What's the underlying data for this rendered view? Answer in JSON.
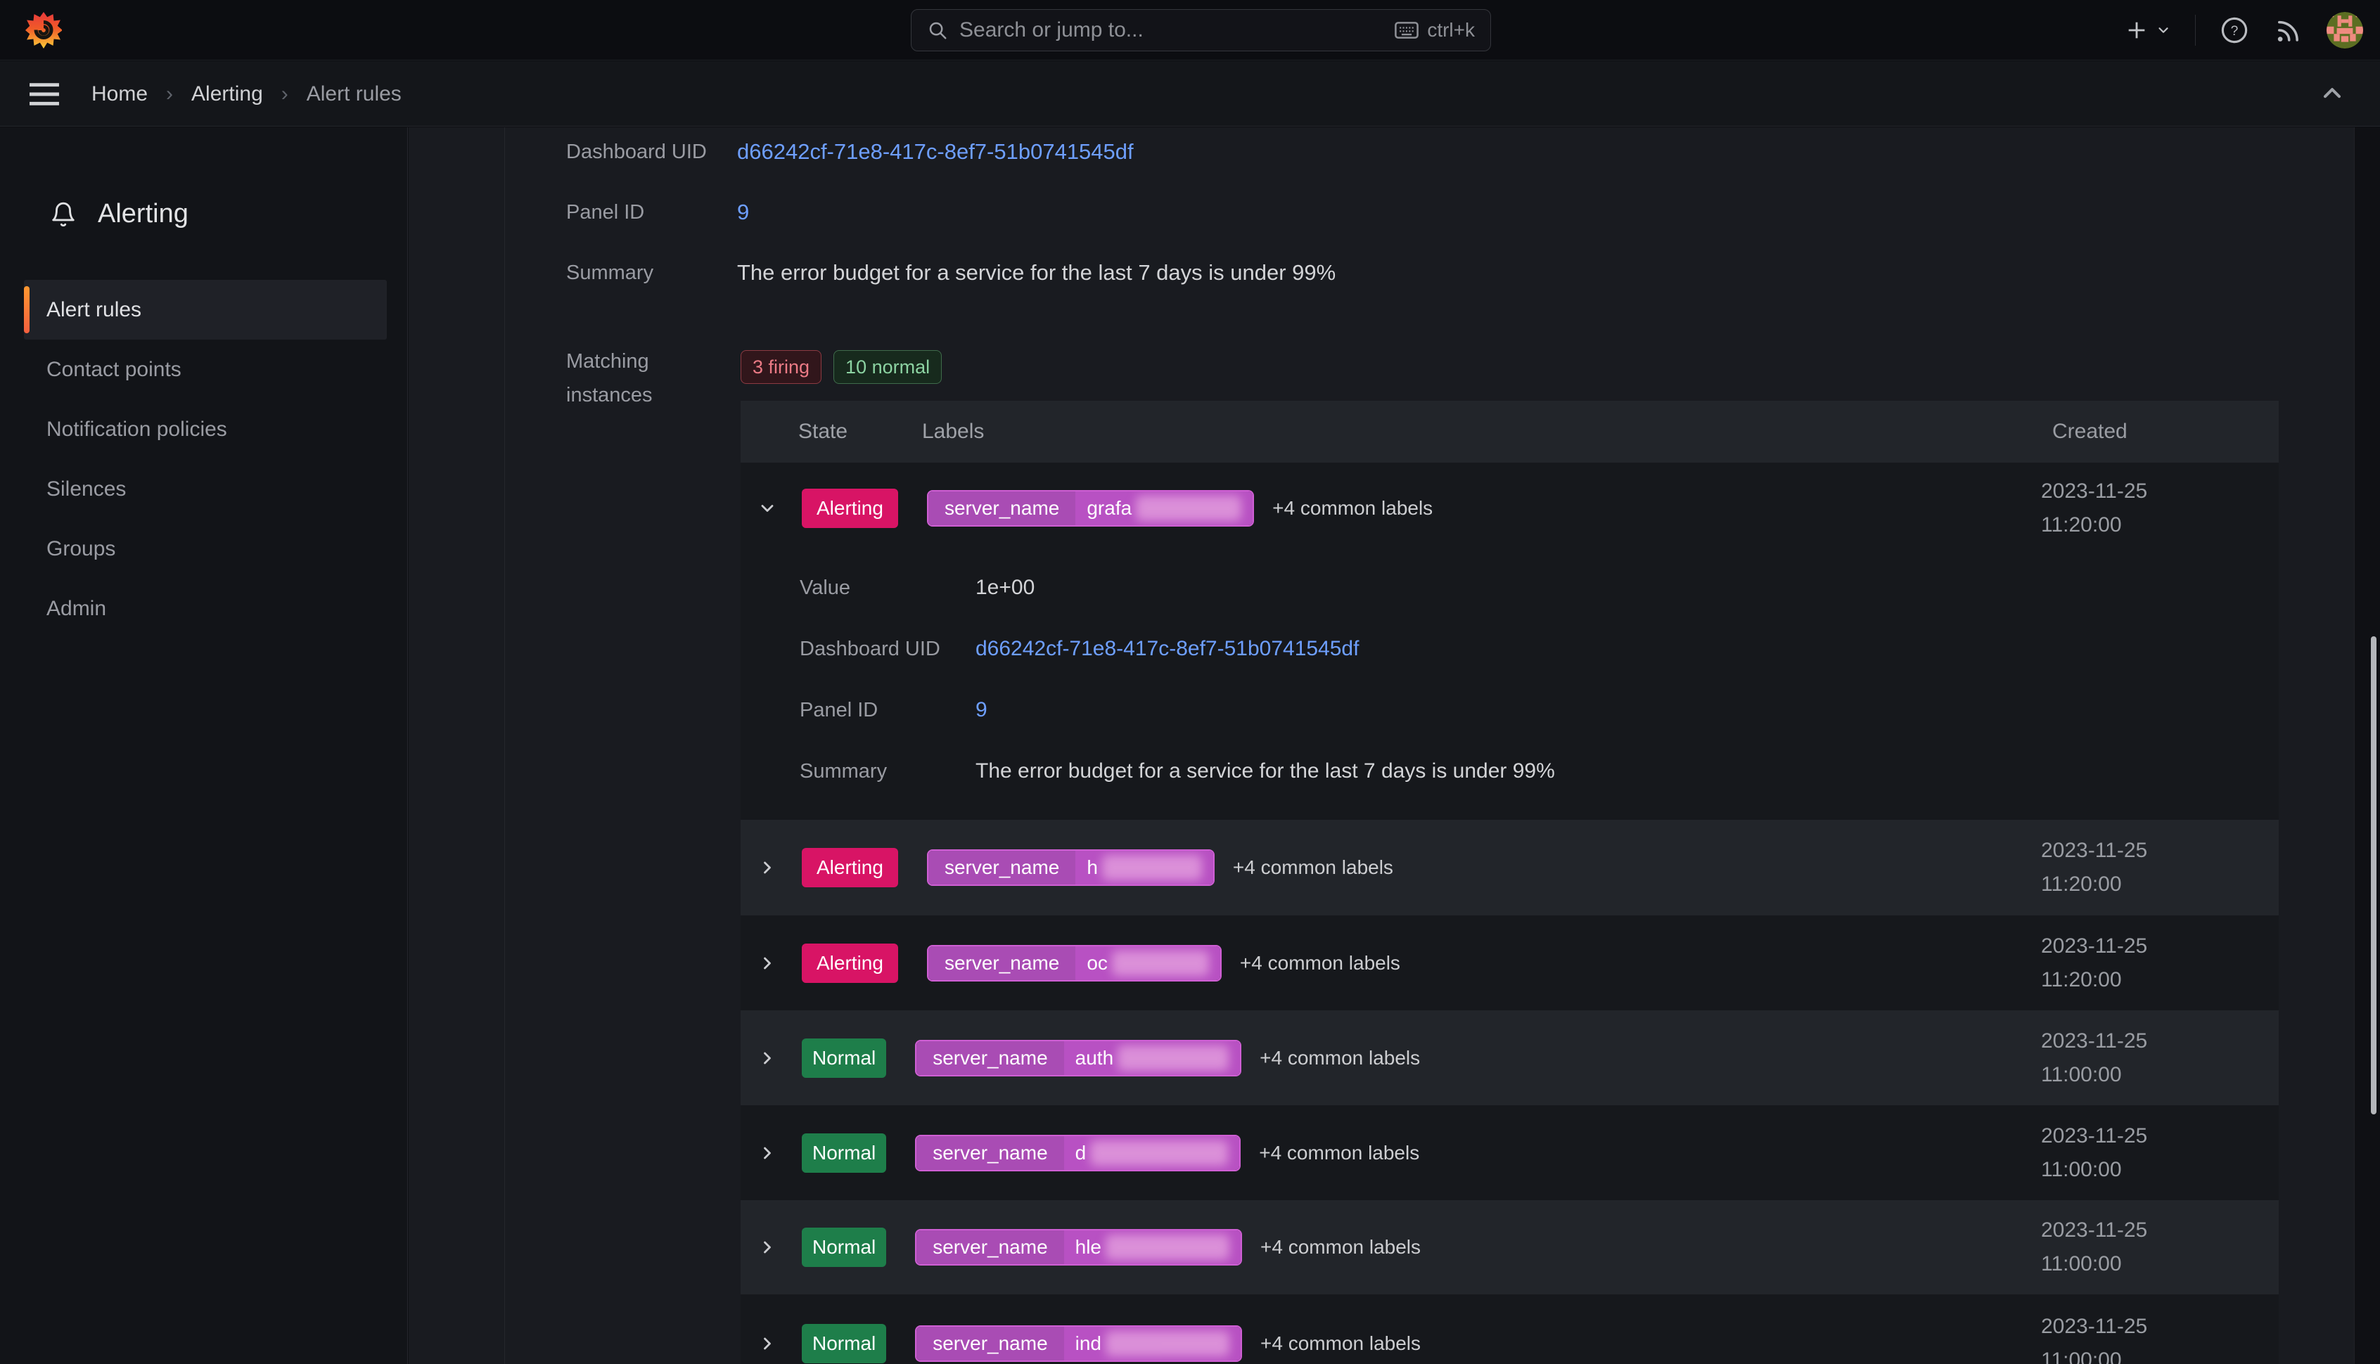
{
  "topbar": {
    "search_placeholder": "Search or jump to...",
    "shortcut": "ctrl+k"
  },
  "breadcrumb": {
    "items": [
      "Home",
      "Alerting",
      "Alert rules"
    ]
  },
  "sidebar": {
    "title": "Alerting",
    "items": [
      {
        "label": "Alert rules",
        "active": true
      },
      {
        "label": "Contact points",
        "active": false
      },
      {
        "label": "Notification policies",
        "active": false
      },
      {
        "label": "Silences",
        "active": false
      },
      {
        "label": "Groups",
        "active": false
      },
      {
        "label": "Admin",
        "active": false
      }
    ]
  },
  "detail": {
    "fields": [
      {
        "label": "Dashboard UID",
        "value": "d66242cf-71e8-417c-8ef7-51b0741545df",
        "type": "link"
      },
      {
        "label": "Panel ID",
        "value": "9",
        "type": "link"
      },
      {
        "label": "Summary",
        "value": "The error budget for a service for the last 7 days is under 99%",
        "type": "text"
      }
    ],
    "matching_label": "Matching instances",
    "badges": [
      {
        "text": "3 firing",
        "kind": "firing"
      },
      {
        "text": "10 normal",
        "kind": "normal"
      }
    ]
  },
  "table": {
    "headers": [
      "State",
      "Labels",
      "Created"
    ],
    "rows": [
      {
        "state": "Alerting",
        "label_key": "server_name",
        "value_prefix": "grafa",
        "redacted": true,
        "redacted_width": 150,
        "common_labels": "+4 common labels",
        "date": "2023-11-25",
        "time": "11:20:00",
        "expanded": true,
        "details": [
          {
            "label": "Value",
            "value": "1e+00",
            "type": "text"
          },
          {
            "label": "Dashboard UID",
            "value": "d66242cf-71e8-417c-8ef7-51b0741545df",
            "type": "link"
          },
          {
            "label": "Panel ID",
            "value": "9",
            "type": "link"
          },
          {
            "label": "Summary",
            "value": "The error budget for a service for the last 7 days is under 99%",
            "type": "text"
          }
        ]
      },
      {
        "state": "Alerting",
        "label_key": "server_name",
        "value_prefix": "h",
        "redacted": true,
        "redacted_width": 142,
        "common_labels": "+4 common labels",
        "date": "2023-11-25",
        "time": "11:20:00",
        "expanded": false
      },
      {
        "state": "Alerting",
        "label_key": "server_name",
        "value_prefix": "oc",
        "redacted": true,
        "redacted_width": 138,
        "common_labels": "+4 common labels",
        "date": "2023-11-25",
        "time": "11:20:00",
        "expanded": false
      },
      {
        "state": "Normal",
        "label_key": "server_name",
        "value_prefix": "auth",
        "redacted": true,
        "redacted_width": 158,
        "common_labels": "+4 common labels",
        "date": "2023-11-25",
        "time": "11:00:00",
        "expanded": false
      },
      {
        "state": "Normal",
        "label_key": "server_name",
        "value_prefix": "d",
        "redacted": true,
        "redacted_width": 196,
        "common_labels": "+4 common labels",
        "date": "2023-11-25",
        "time": "11:00:00",
        "expanded": false
      },
      {
        "state": "Normal",
        "label_key": "server_name",
        "value_prefix": "hle",
        "redacted": true,
        "redacted_width": 176,
        "common_labels": "+4 common labels",
        "date": "2023-11-25",
        "time": "11:00:00",
        "expanded": false
      },
      {
        "state": "Normal",
        "label_key": "server_name",
        "value_prefix": "ind",
        "redacted": true,
        "redacted_width": 176,
        "common_labels": "+4 common labels",
        "date": "2023-11-25",
        "time": "11:00:00",
        "expanded": false
      }
    ]
  },
  "icons": {
    "grafana-logo": "orange flame swirl",
    "search-icon": "magnifier",
    "keyboard-icon": "keyboard",
    "plus-icon": "+",
    "chevron-down-icon": "v",
    "help-icon": "? in circle",
    "rss-icon": "rss arcs",
    "menu-icon": "hamburger",
    "bell-icon": "bell outline",
    "chevron-up-icon": "^",
    "expand-chevron-icon": ">",
    "collapse-chevron-icon": "v"
  },
  "colors": {
    "alerting_badge": "#d81465",
    "normal_badge": "#1e7e4a",
    "firing_badge_text": "#eb7a85",
    "normal_badge_text": "#8cd3a2",
    "label_key_bg": "#a94cb4",
    "label_value_bg": "#b851c3",
    "label_border": "#cf5fd4",
    "link": "#6e9fff",
    "active_accent": "#f55f3e"
  }
}
